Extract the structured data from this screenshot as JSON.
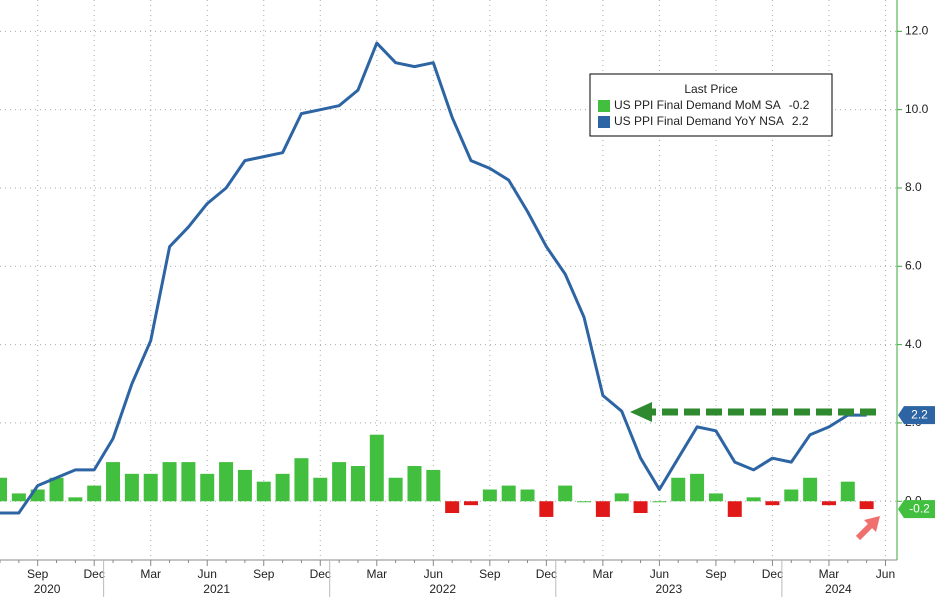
{
  "chart_data": {
    "type": "combo",
    "categories": [
      null,
      null,
      "Sep",
      null,
      null,
      "Dec",
      null,
      null,
      "Mar",
      null,
      null,
      "Jun",
      null,
      null,
      "Sep",
      null,
      null,
      "Dec",
      null,
      null,
      "Mar",
      null,
      null,
      "Jun",
      null,
      null,
      "Sep",
      null,
      null,
      "Dec",
      null,
      null,
      "Mar",
      null,
      null,
      "Jun",
      null,
      null,
      "Sep",
      null,
      null,
      "Dec",
      null,
      null,
      "Mar",
      null,
      null,
      "Jun"
    ],
    "x_groups": [
      {
        "label": "2020",
        "span": 6
      },
      {
        "label": "2021",
        "span": 12
      },
      {
        "label": "2022",
        "span": 12
      },
      {
        "label": "2023",
        "span": 12
      },
      {
        "label": "2024",
        "span": 6
      }
    ],
    "legend_title": "Last Price",
    "series": [
      {
        "name": "US PPI Final Demand MoM SA",
        "type": "bar",
        "color": "#43bf3f",
        "negative_color": "#e01818",
        "values": [
          0.6,
          0.2,
          0.3,
          0.6,
          0.1,
          0.4,
          1.0,
          0.7,
          0.7,
          1.0,
          1.0,
          0.7,
          1.0,
          0.8,
          0.5,
          0.7,
          1.1,
          0.6,
          1.0,
          0.9,
          1.7,
          0.6,
          0.9,
          0.8,
          -0.3,
          -0.1,
          0.3,
          0.4,
          0.3,
          -0.4,
          0.4,
          0.0,
          -0.4,
          0.2,
          -0.3,
          0.0,
          0.6,
          0.7,
          0.2,
          -0.4,
          0.1,
          -0.1,
          0.3,
          0.6,
          -0.1,
          0.5,
          -0.2,
          null
        ]
      },
      {
        "name": "US PPI Final Demand YoY NSA",
        "type": "line",
        "color": "#2d64a3",
        "values": [
          -0.3,
          -0.3,
          0.4,
          0.6,
          0.8,
          0.8,
          1.6,
          3.0,
          4.1,
          6.5,
          7.0,
          7.6,
          8.0,
          8.7,
          8.8,
          8.9,
          9.9,
          10.0,
          10.1,
          10.5,
          11.7,
          11.2,
          11.1,
          11.2,
          9.8,
          8.7,
          8.5,
          8.2,
          7.4,
          6.5,
          5.8,
          4.7,
          2.7,
          2.3,
          1.1,
          0.3,
          1.1,
          1.9,
          1.8,
          1.0,
          0.8,
          1.1,
          1.0,
          1.7,
          1.9,
          2.2,
          2.2,
          null
        ]
      }
    ],
    "ylim": [
      -1.5,
      12.8
    ],
    "yticks": [
      {
        "value": 0,
        "label": "0.0"
      },
      {
        "value": 2,
        "label": "2.0"
      },
      {
        "value": 4,
        "label": "4.0"
      },
      {
        "value": 6,
        "label": "6.0"
      },
      {
        "value": 8,
        "label": "8.0"
      },
      {
        "value": 10,
        "label": "10.0"
      },
      {
        "value": 12,
        "label": "12.0"
      }
    ],
    "grid": true,
    "axis_color": "#3aa83a"
  }
}
